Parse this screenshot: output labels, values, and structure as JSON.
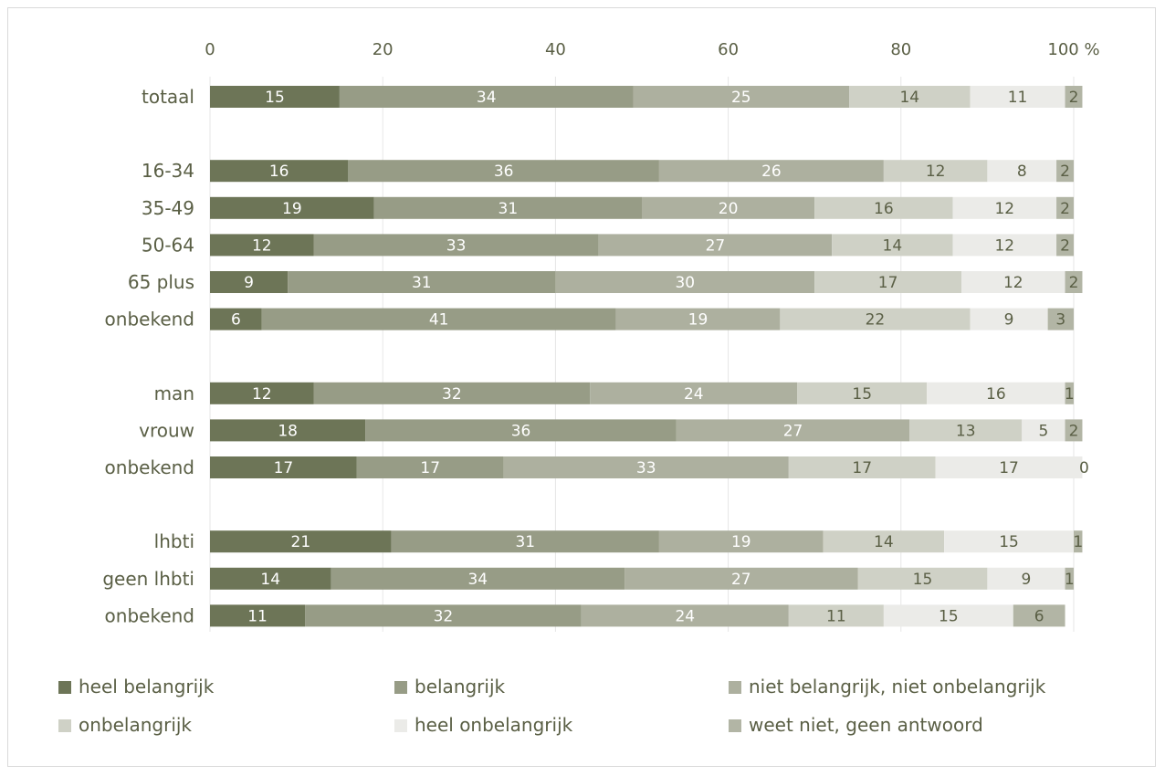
{
  "chart_data": {
    "type": "bar",
    "orientation": "horizontal",
    "stacked": true,
    "axis_label": "100 %",
    "xlim": [
      0,
      100
    ],
    "ticks": [
      0,
      20,
      40,
      60,
      80,
      100
    ],
    "tick_labels": [
      "0",
      "20",
      "40",
      "60",
      "80",
      "100 %"
    ],
    "grid": true,
    "legend_position": "bottom",
    "categories": [
      "totaal",
      "16-34",
      "35-49",
      "50-64",
      "65 plus",
      "onbekend",
      "man",
      "vrouw",
      "onbekend",
      "lhbti",
      "geen lhbti",
      "onbekend"
    ],
    "groups": [
      [
        0
      ],
      [
        1,
        2,
        3,
        4,
        5
      ],
      [
        6,
        7,
        8
      ],
      [
        9,
        10,
        11
      ]
    ],
    "series": [
      {
        "name": "heel belangrijk",
        "color": "#6d7557",
        "label_color": "#ffffff",
        "values": [
          15,
          16,
          19,
          12,
          9,
          6,
          12,
          18,
          17,
          21,
          14,
          11
        ]
      },
      {
        "name": "belangrijk",
        "color": "#979c86",
        "label_color": "#ffffff",
        "values": [
          34,
          36,
          31,
          33,
          31,
          41,
          32,
          36,
          17,
          31,
          34,
          32
        ]
      },
      {
        "name": "niet belangrijk, niet onbelangrijk",
        "color": "#adb09f",
        "label_color": "#ffffff",
        "values": [
          25,
          26,
          20,
          27,
          30,
          19,
          24,
          27,
          33,
          19,
          27,
          24
        ]
      },
      {
        "name": "onbelangrijk",
        "color": "#cfd1c6",
        "label_color": "#5a5f45",
        "values": [
          14,
          12,
          16,
          14,
          17,
          22,
          15,
          13,
          17,
          14,
          15,
          11
        ]
      },
      {
        "name": "heel onbelangrijk",
        "color": "#ebebe8",
        "label_color": "#5a5f45",
        "values": [
          11,
          8,
          12,
          12,
          12,
          9,
          16,
          5,
          17,
          15,
          9,
          15
        ]
      },
      {
        "name": "weet niet, geen antwoord",
        "color": "#b2b5a5",
        "label_color": "#5a5f45",
        "values": [
          2,
          2,
          2,
          2,
          2,
          3,
          1,
          2,
          0,
          1,
          1,
          6
        ]
      }
    ]
  }
}
